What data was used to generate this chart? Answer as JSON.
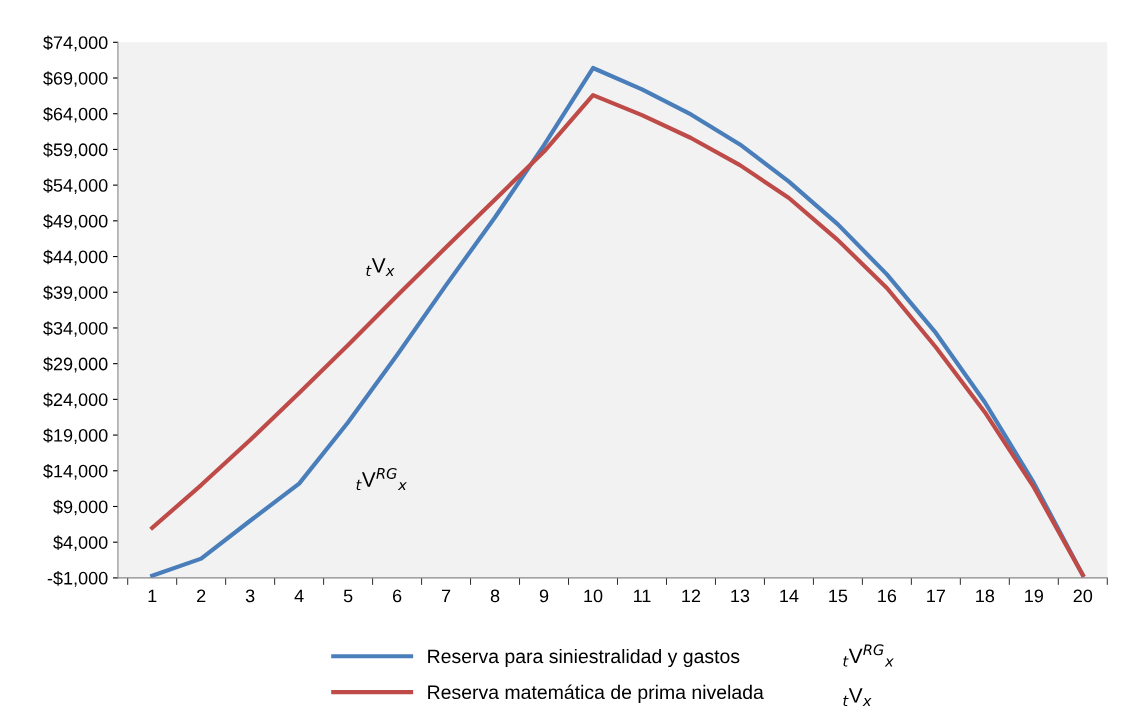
{
  "chart_data": {
    "type": "line",
    "categories": [
      "1",
      "2",
      "3",
      "4",
      "5",
      "6",
      "7",
      "8",
      "9",
      "10",
      "11",
      "12",
      "13",
      "14",
      "15",
      "16",
      "17",
      "18",
      "19",
      "20"
    ],
    "series": [
      {
        "name": "Reserva para siniestralidad y gastos",
        "color": "#4a7ebb",
        "values": [
          -700,
          1700,
          7000,
          12200,
          20800,
          30200,
          40000,
          49500,
          59600,
          70400,
          67400,
          63900,
          59700,
          54500,
          48500,
          41500,
          33300,
          23600,
          12300,
          -600
        ]
      },
      {
        "name": "Reserva matemática de prima nivelada",
        "color": "#be4b48",
        "values": [
          6000,
          12000,
          18300,
          24900,
          31600,
          38500,
          45300,
          52000,
          58700,
          66600,
          63800,
          60600,
          56800,
          52200,
          46300,
          39600,
          31300,
          22200,
          11700,
          -600
        ]
      }
    ],
    "annotations": [
      "$_{t}$V$_{x}$",
      "$_{t}$V$^{RG}$$_{x}$",
      "$_{t}$V$^{RG}$$_{x}$",
      "$_{t}$V$_{x}$"
    ],
    "ylim": [
      -1000,
      74000
    ],
    "yticks": [
      {
        "value": -1000,
        "label": "-$1,000"
      },
      {
        "value": 4000,
        "label": "$4,000"
      },
      {
        "value": 9000,
        "label": "$9,000"
      },
      {
        "value": 14000,
        "label": "$14,000"
      },
      {
        "value": 19000,
        "label": "$19,000"
      },
      {
        "value": 24000,
        "label": "$24,000"
      },
      {
        "value": 29000,
        "label": "$29,000"
      },
      {
        "value": 34000,
        "label": "$34,000"
      },
      {
        "value": 39000,
        "label": "$39,000"
      },
      {
        "value": 44000,
        "label": "$44,000"
      },
      {
        "value": 49000,
        "label": "$49,000"
      },
      {
        "value": 54000,
        "label": "$54,000"
      },
      {
        "value": 59000,
        "label": "$59,000"
      },
      {
        "value": 64000,
        "label": "$64,000"
      },
      {
        "value": 69000,
        "label": "$69,000"
      },
      {
        "value": 74000,
        "label": "$74,000"
      }
    ],
    "grid": false,
    "legend": "bottom",
    "marker": "none",
    "line_style": "solid"
  }
}
